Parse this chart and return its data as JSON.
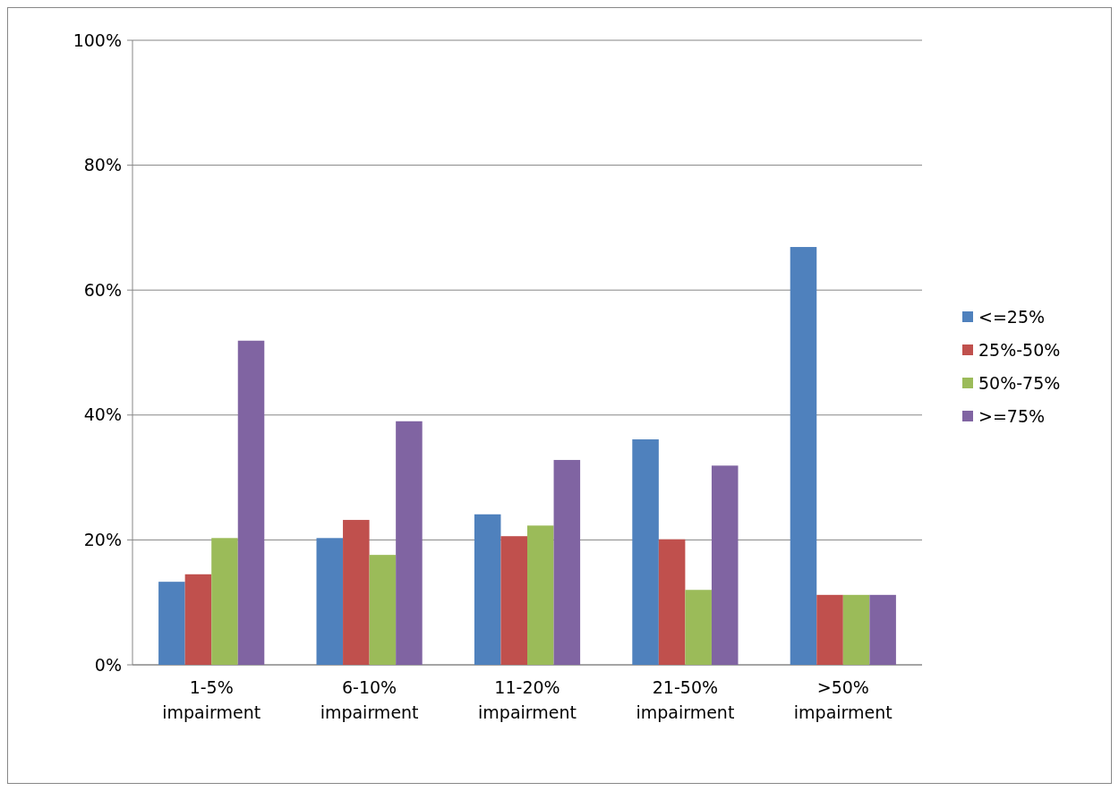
{
  "chart_data": {
    "type": "bar",
    "categories": [
      "1-5% impairment",
      "6-10% impairment",
      "11-20% impairment",
      "21-50% impairment",
      ">50% impairment"
    ],
    "series": [
      {
        "name": "<=25%",
        "color": "#4f81bd",
        "values": [
          13.3,
          20.3,
          24.1,
          36.1,
          66.9
        ]
      },
      {
        "name": "25%-50%",
        "color": "#c0504d",
        "values": [
          14.5,
          23.2,
          20.6,
          20.1,
          11.2
        ]
      },
      {
        "name": "50%-75%",
        "color": "#9bbb59",
        "values": [
          20.3,
          17.6,
          22.3,
          12.0,
          11.2
        ]
      },
      {
        "name": ">=75%",
        "color": "#8064a2",
        "values": [
          51.9,
          39.0,
          32.8,
          31.9,
          11.2
        ]
      }
    ],
    "ylim": [
      0,
      100
    ],
    "yticks": [
      {
        "value": 0,
        "label": "0%"
      },
      {
        "value": 20,
        "label": "20%"
      },
      {
        "value": 40,
        "label": "40%"
      },
      {
        "value": 60,
        "label": "60%"
      },
      {
        "value": 80,
        "label": "80%"
      },
      {
        "value": 100,
        "label": "100%"
      }
    ],
    "grid": "y",
    "legend": "right"
  }
}
